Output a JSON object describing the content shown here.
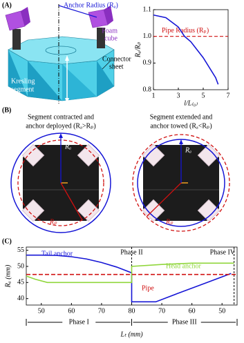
{
  "panel_a": {
    "label": "(A)",
    "anchor_radius": "Anchor Radius (Rₐ)",
    "foam_cube": [
      "Foam",
      "cube"
    ],
    "connector_sheet": [
      "Connector",
      "sheet"
    ],
    "kresling_segment": [
      "Kresling",
      "segment"
    ]
  },
  "panel_b": {
    "label": "(B)",
    "left": {
      "caption": [
        "Segment contracted and",
        "anchor deployed (Rₐ>Rₚ)"
      ],
      "ra": "Rₐ",
      "rp": "Rₚ"
    },
    "right": {
      "caption": [
        "Segment extended and",
        "anchor towed (Rₐ<Rₚ)"
      ],
      "ra": "Rₐ",
      "rp": "Rₚ"
    }
  },
  "panel_c": {
    "label": "(C)",
    "phases": [
      "Phase I",
      "Phase II",
      "Phase III",
      "Phase IV"
    ]
  },
  "chart_data": [
    {
      "type": "line",
      "xlabel": "l/L₍₀₎",
      "ylabel": "Rₐ/Rₚ",
      "x": [
        1,
        2,
        3,
        3.5,
        4,
        5,
        6,
        6.2
      ],
      "series": [
        {
          "color": "#1515d6",
          "values": [
            1.08,
            1.07,
            1.035,
            1.0,
            0.98,
            0.92,
            0.845,
            0.82
          ]
        }
      ],
      "reference_line": {
        "y": 1,
        "label": "Pipe Radius (Rₚ)",
        "color": "#d01010"
      },
      "xlim": [
        1,
        7
      ],
      "ylim": [
        0.8,
        1.1
      ],
      "xticks": [
        1,
        3,
        5,
        7
      ],
      "yticks": [
        0.8,
        0.9,
        {
          "value": 1,
          "label": "1.0"
        },
        1.1
      ]
    },
    {
      "type": "line",
      "xlabel": "Lₜ (mm)",
      "ylabel": "Rₐ (mm)",
      "series": [
        {
          "name": "Tail anchor",
          "color": "#1515d6",
          "x": [
            45,
            50,
            55,
            60,
            65,
            70,
            75,
            80,
            80,
            88,
            95,
            105,
            113
          ],
          "values": [
            53.5,
            53.5,
            53.4,
            53,
            52.3,
            51.2,
            49.8,
            48,
            39,
            39,
            41.5,
            45,
            47.8
          ]
        },
        {
          "name": "Head anchor",
          "color": "#8fd63a",
          "x": [
            45,
            48,
            52,
            55,
            80,
            80,
            90,
            100,
            110,
            114
          ],
          "values": [
            47,
            46,
            45,
            45,
            45,
            50,
            50.6,
            51,
            51,
            51
          ]
        },
        {
          "name": "Pipe",
          "color": "#d01010",
          "style": "dashed",
          "x": [
            45,
            115
          ],
          "values": [
            47.5,
            47.5
          ]
        }
      ],
      "dividers": [
        80,
        114
      ],
      "xlim": [
        45,
        115
      ],
      "ylim": [
        38,
        56
      ],
      "xticks": [
        50,
        60,
        70,
        80,
        {
          "value": 90,
          "label": "70"
        },
        {
          "value": 100,
          "label": "60"
        },
        {
          "value": 110,
          "label": "50"
        }
      ],
      "yticks": [
        40,
        45,
        50,
        55
      ]
    }
  ]
}
